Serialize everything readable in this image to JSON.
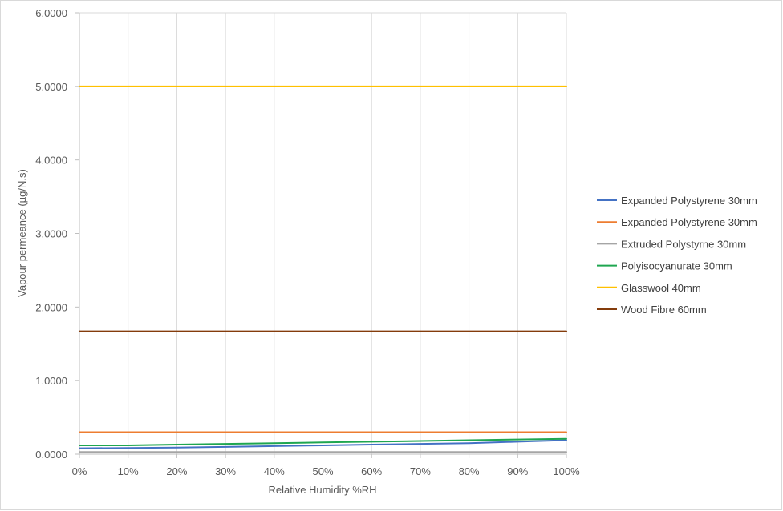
{
  "chart_data": {
    "type": "line",
    "title": "",
    "xlabel": "Relative Humidity %RH",
    "ylabel": "Vapour permeance (µg/N.s)",
    "x": [
      0,
      10,
      20,
      30,
      40,
      50,
      60,
      70,
      80,
      90,
      100
    ],
    "x_tick_labels": [
      "0%",
      "10%",
      "20%",
      "30%",
      "40%",
      "50%",
      "60%",
      "70%",
      "80%",
      "90%",
      "100%"
    ],
    "xlim": [
      0,
      100
    ],
    "ylim": [
      0,
      6
    ],
    "y_ticks": [
      0,
      1,
      2,
      3,
      4,
      5,
      6
    ],
    "y_tick_labels": [
      "0.0000",
      "1.0000",
      "2.0000",
      "3.0000",
      "4.0000",
      "5.0000",
      "6.0000"
    ],
    "grid": "vertical",
    "legend_position": "right",
    "series": [
      {
        "name": "Expanded Polystyrene 30mm",
        "color": "#4472c4",
        "values": [
          0.08,
          0.085,
          0.09,
          0.1,
          0.11,
          0.12,
          0.13,
          0.14,
          0.15,
          0.17,
          0.19
        ]
      },
      {
        "name": "Expanded Polystyrene 30mm",
        "color": "#ed7d31",
        "values": [
          0.3,
          0.3,
          0.3,
          0.3,
          0.3,
          0.3,
          0.3,
          0.3,
          0.3,
          0.3,
          0.3
        ]
      },
      {
        "name": "Extruded Polystyrne 30mm",
        "color": "#a5a5a5",
        "values": [
          0.03,
          0.03,
          0.03,
          0.03,
          0.03,
          0.03,
          0.03,
          0.03,
          0.03,
          0.03,
          0.03
        ]
      },
      {
        "name": "Polyisocyanurate 30mm",
        "color": "#1fa650",
        "values": [
          0.12,
          0.12,
          0.13,
          0.14,
          0.15,
          0.16,
          0.17,
          0.18,
          0.19,
          0.2,
          0.21
        ]
      },
      {
        "name": "Glasswool 40mm",
        "color": "#ffc000",
        "values": [
          5.0,
          5.0,
          5.0,
          5.0,
          5.0,
          5.0,
          5.0,
          5.0,
          5.0,
          5.0,
          5.0
        ]
      },
      {
        "name": "Wood Fibre 60mm",
        "color": "#843c0c",
        "values": [
          1.67,
          1.67,
          1.67,
          1.67,
          1.67,
          1.67,
          1.67,
          1.67,
          1.67,
          1.67,
          1.67
        ]
      }
    ]
  }
}
